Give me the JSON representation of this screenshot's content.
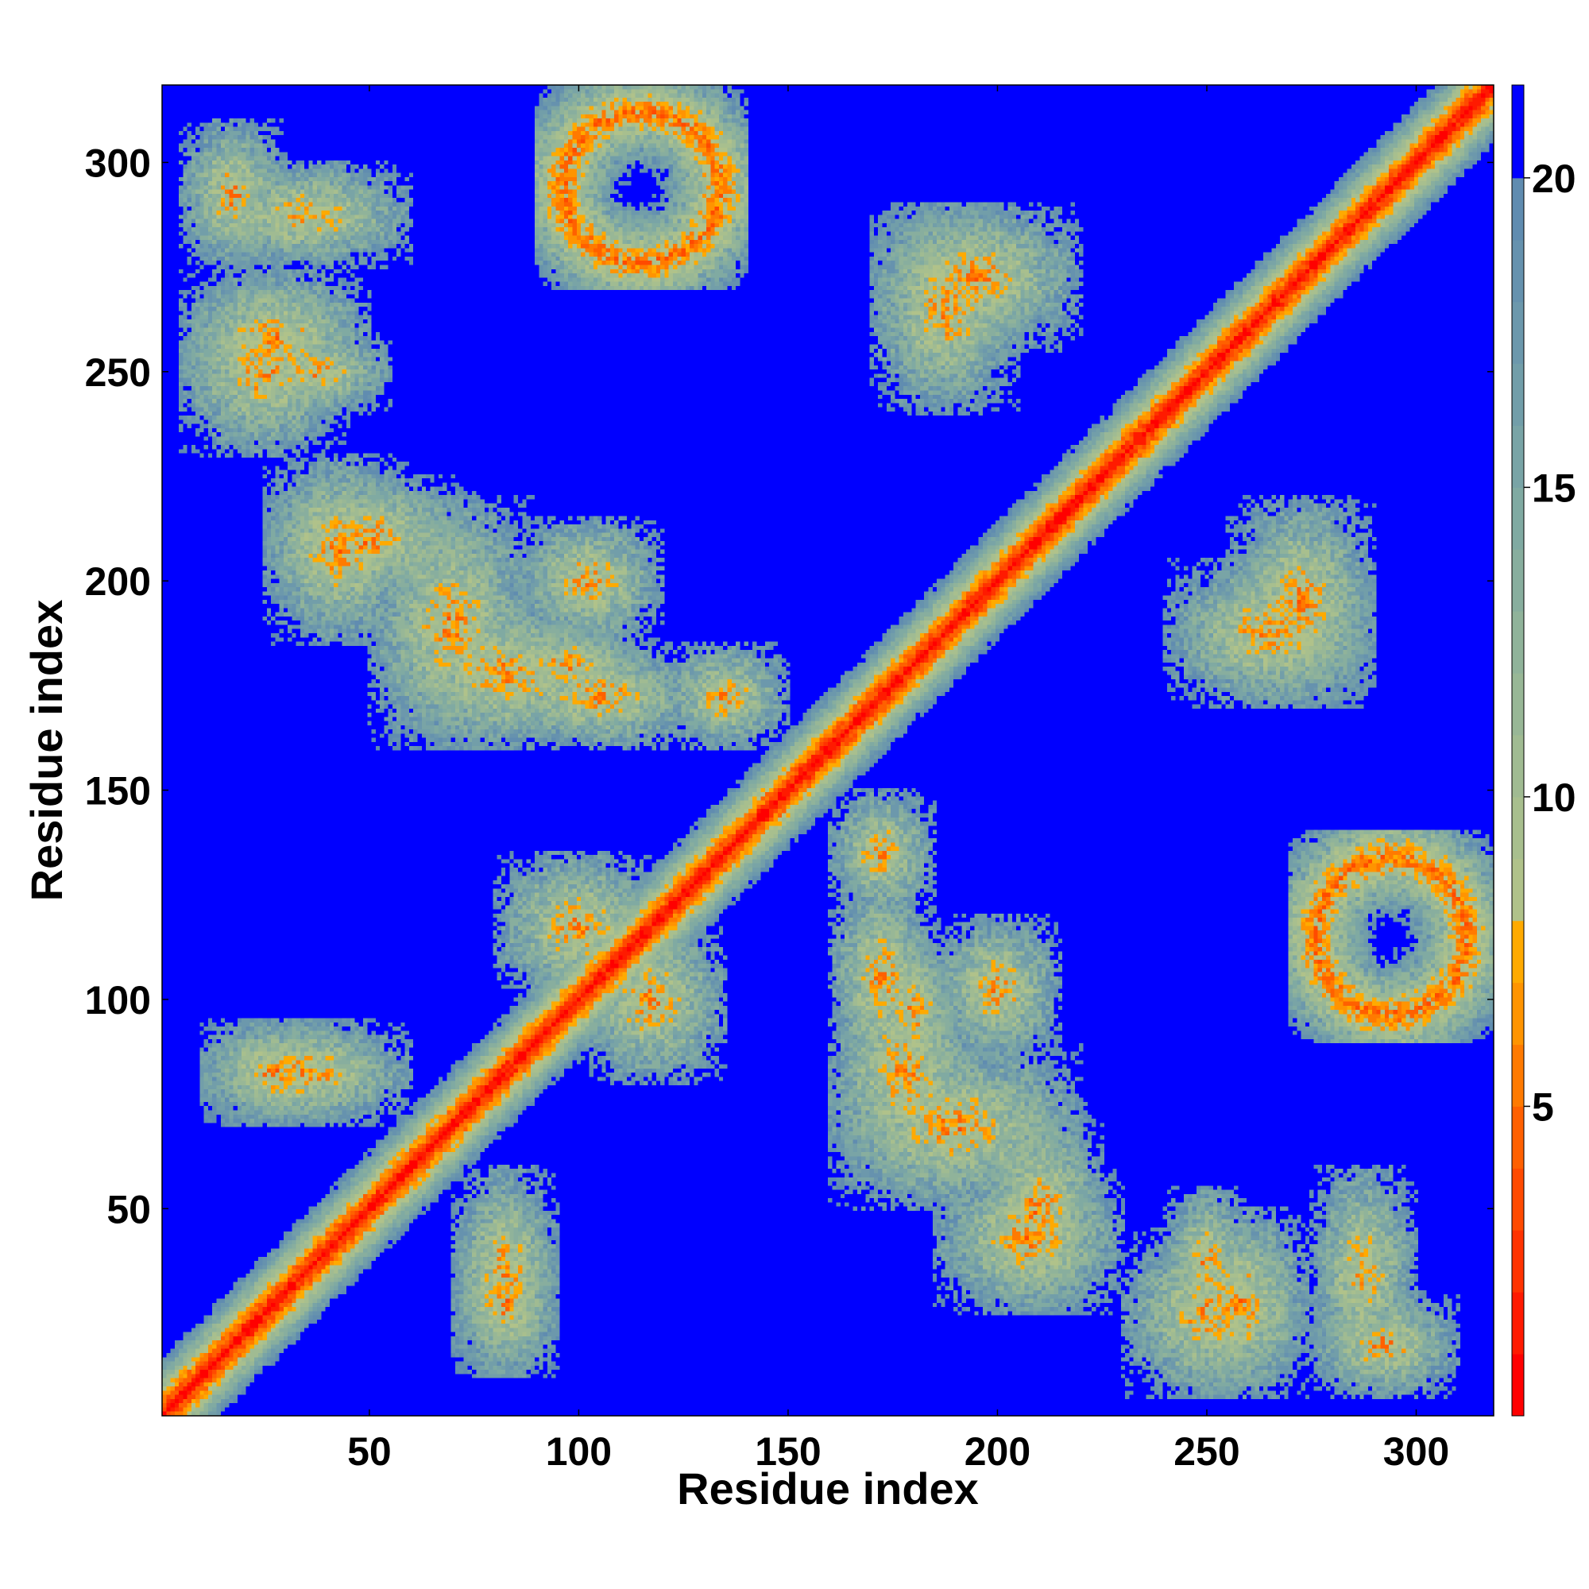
{
  "chart_data": {
    "type": "heatmap",
    "title": "",
    "xlabel": "Residue index",
    "ylabel": "Residue index",
    "xlim": [
      1,
      318
    ],
    "ylim": [
      1,
      318
    ],
    "x_ticks": [
      50,
      100,
      150,
      200,
      250,
      300
    ],
    "y_ticks": [
      50,
      100,
      150,
      200,
      250,
      300
    ],
    "colorbar": {
      "range": [
        0,
        21.5
      ],
      "ticks": [
        5,
        10,
        15,
        20
      ],
      "levels": [
        {
          "from": 0,
          "to": 1,
          "color": "#ff0000"
        },
        {
          "from": 1,
          "to": 2,
          "color": "#ff1a00"
        },
        {
          "from": 2,
          "to": 3,
          "color": "#ff3300"
        },
        {
          "from": 3,
          "to": 4,
          "color": "#ff4a00"
        },
        {
          "from": 4,
          "to": 5,
          "color": "#ff6000"
        },
        {
          "from": 5,
          "to": 6,
          "color": "#ff7a00"
        },
        {
          "from": 6,
          "to": 7,
          "color": "#ff9400"
        },
        {
          "from": 7,
          "to": 8,
          "color": "#ffaa00"
        },
        {
          "from": 8,
          "to": 9,
          "color": "#b0c28a"
        },
        {
          "from": 9,
          "to": 10,
          "color": "#a8bf8e"
        },
        {
          "from": 10,
          "to": 11,
          "color": "#a0bb92"
        },
        {
          "from": 11,
          "to": 12,
          "color": "#98b796"
        },
        {
          "from": 12,
          "to": 13,
          "color": "#90b39a"
        },
        {
          "from": 13,
          "to": 14,
          "color": "#88ae9e"
        },
        {
          "from": 14,
          "to": 15,
          "color": "#80aaa2"
        },
        {
          "from": 15,
          "to": 16,
          "color": "#79a4a6"
        },
        {
          "from": 16,
          "to": 17,
          "color": "#729ea9"
        },
        {
          "from": 17,
          "to": 18,
          "color": "#6c98ac"
        },
        {
          "from": 18,
          "to": 19,
          "color": "#6692ae"
        },
        {
          "from": 19,
          "to": 20,
          "color": "#608cb0"
        },
        {
          "from": 20,
          "to": 21.5,
          "color": "#0000ff"
        }
      ]
    },
    "data_description": "Symmetric residue-residue distance map; near-zero values along the diagonal, off-diagonal contact bands, background saturated above 20",
    "contact_bands": [
      {
        "x": [
          1,
          318
        ],
        "y": [
          1,
          318
        ],
        "kind": "diagonal"
      },
      {
        "x": [
          5,
          50
        ],
        "y": [
          240,
          275
        ],
        "kind": "band"
      },
      {
        "x": [
          20,
          55
        ],
        "y": [
          240,
          260
        ],
        "kind": "band"
      },
      {
        "x": [
          25,
          75
        ],
        "y": [
          195,
          225
        ],
        "kind": "band"
      },
      {
        "x": [
          55,
          110
        ],
        "y": [
          160,
          195
        ],
        "kind": "band"
      },
      {
        "x": [
          85,
          120
        ],
        "y": [
          185,
          215
        ],
        "kind": "band"
      },
      {
        "x": [
          80,
          130
        ],
        "y": [
          160,
          185
        ],
        "kind": "band"
      },
      {
        "x": [
          120,
          150
        ],
        "y": [
          160,
          185
        ],
        "kind": "band"
      },
      {
        "x": [
          90,
          140
        ],
        "y": [
          270,
          318
        ],
        "kind": "ring"
      },
      {
        "x": [
          270,
          318
        ],
        "y": [
          90,
          140
        ],
        "kind": "ring"
      },
      {
        "x": [
          10,
          60
        ],
        "y": [
          275,
          300
        ],
        "kind": "band"
      },
      {
        "x": [
          170,
          220
        ],
        "y": [
          255,
          290
        ],
        "kind": "band"
      },
      {
        "x": [
          240,
          290
        ],
        "y": [
          170,
          205
        ],
        "kind": "band"
      },
      {
        "x": [
          160,
          220
        ],
        "y": [
          50,
          90
        ],
        "kind": "band"
      },
      {
        "x": [
          185,
          230
        ],
        "y": [
          25,
          60
        ],
        "kind": "band"
      },
      {
        "x": [
          230,
          270
        ],
        "y": [
          5,
          45
        ],
        "kind": "band"
      },
      {
        "x": [
          275,
          310
        ],
        "y": [
          5,
          30
        ],
        "kind": "band"
      },
      {
        "x": [
          10,
          60
        ],
        "y": [
          70,
          95
        ],
        "kind": "band"
      },
      {
        "x": [
          70,
          95
        ],
        "y": [
          10,
          45
        ],
        "kind": "band"
      },
      {
        "x": [
          80,
          120
        ],
        "y": [
          100,
          135
        ],
        "kind": "band"
      },
      {
        "x": [
          170,
          190
        ],
        "y": [
          80,
          115
        ],
        "kind": "band"
      }
    ]
  }
}
